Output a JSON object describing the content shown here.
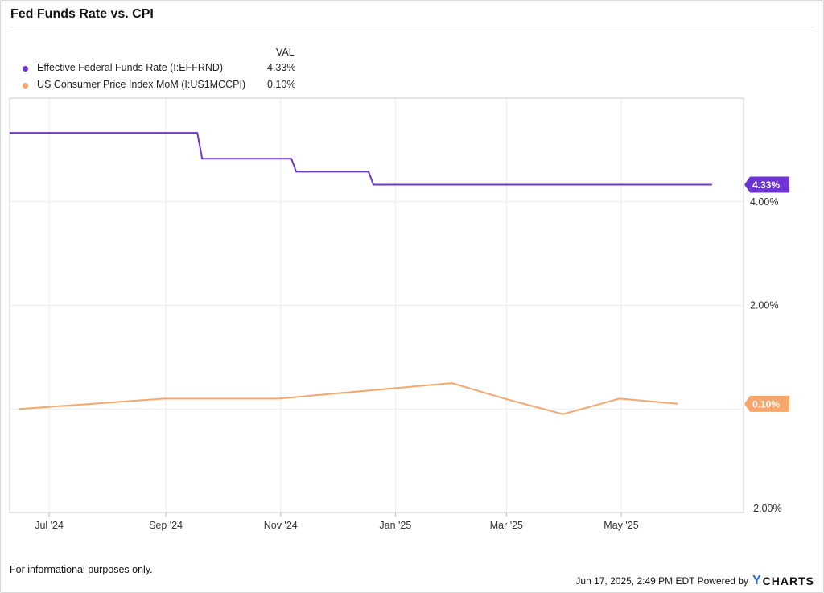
{
  "header": {
    "title": "Fed Funds Rate vs. CPI"
  },
  "legend": {
    "column_header": "VAL",
    "items": [
      {
        "label": "Effective Federal Funds Rate (I:EFFRND)",
        "value": "4.33%",
        "color": "#6f35d4"
      },
      {
        "label": "US Consumer Price Index MoM (I:US1MCCPI)",
        "value": "0.10%",
        "color": "#f7a66c"
      }
    ]
  },
  "chart_data": {
    "type": "line",
    "title": "Fed Funds Rate vs. CPI",
    "xlabel": "",
    "ylabel": "",
    "x_axis": {
      "type": "time",
      "range": [
        "2024-06-10",
        "2025-07-05"
      ],
      "ticks": [
        {
          "date": "2024-07-01",
          "label": "Jul '24"
        },
        {
          "date": "2024-09-01",
          "label": "Sep '24"
        },
        {
          "date": "2024-11-01",
          "label": "Nov '24"
        },
        {
          "date": "2025-01-01",
          "label": "Jan '25"
        },
        {
          "date": "2025-03-01",
          "label": "Mar '25"
        },
        {
          "date": "2025-05-01",
          "label": "May '25"
        }
      ]
    },
    "y_axis": {
      "side": "right",
      "ylim": [
        -2.0,
        6.0
      ],
      "ticks": [
        {
          "value": 4.0,
          "label": "4.00%"
        },
        {
          "value": 2.0,
          "label": "2.00%"
        },
        {
          "value": -2.0,
          "label": "-2.00%"
        }
      ],
      "gridlines": [
        4.0,
        2.0,
        0.0
      ],
      "grid": true
    },
    "series": [
      {
        "name": "Effective Federal Funds Rate (I:EFFRND)",
        "color": "#6f35d4",
        "step": true,
        "last_value": 4.33,
        "last_label": "4.33%",
        "points": [
          {
            "date": "2024-06-10",
            "value": 5.33
          },
          {
            "date": "2024-09-19",
            "value": 4.83
          },
          {
            "date": "2024-11-08",
            "value": 4.58
          },
          {
            "date": "2024-12-19",
            "value": 4.33
          },
          {
            "date": "2025-06-17",
            "value": 4.33
          }
        ]
      },
      {
        "name": "US Consumer Price Index MoM (I:US1MCCPI)",
        "color": "#f7a66c",
        "step": false,
        "last_value": 0.1,
        "last_label": "0.10%",
        "points": [
          {
            "date": "2024-06-15",
            "value": 0.0
          },
          {
            "date": "2024-08-31",
            "value": 0.2
          },
          {
            "date": "2024-10-31",
            "value": 0.2
          },
          {
            "date": "2025-01-31",
            "value": 0.5
          },
          {
            "date": "2025-02-28",
            "value": 0.2
          },
          {
            "date": "2025-03-31",
            "value": -0.1
          },
          {
            "date": "2025-04-30",
            "value": 0.2
          },
          {
            "date": "2025-05-31",
            "value": 0.1
          }
        ]
      }
    ]
  },
  "footer": {
    "disclaimer": "For informational purposes only.",
    "timestamp": "Jun 17, 2025, 2:49 PM EDT Powered by",
    "brand_mark": "Y",
    "brand_name": "CHARTS"
  }
}
